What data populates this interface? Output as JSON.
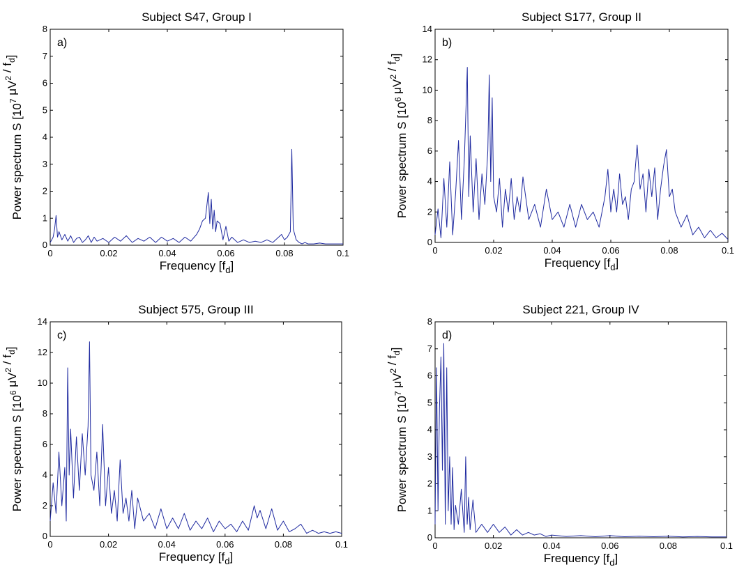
{
  "chart_data": [
    {
      "type": "line",
      "panel_label": "a)",
      "title": "Subject S47, Group I",
      "xlabel": "Frequency [f_d]",
      "ylabel": "Power spectrum S [10^7 μV^2 / f_d]",
      "ylabel_exponent": "7",
      "xlim": [
        0,
        0.1
      ],
      "ylim": [
        0,
        8
      ],
      "xticks": [
        0,
        0.02,
        0.04,
        0.06,
        0.08,
        0.1
      ],
      "xtick_labels": [
        "0",
        "0.02",
        "0.04",
        "0.06",
        "0.08",
        "0.1"
      ],
      "yticks": [
        0,
        1,
        2,
        3,
        4,
        5,
        6,
        7,
        8
      ],
      "ytick_labels": [
        "0",
        "1",
        "2",
        "3",
        "4",
        "5",
        "6",
        "7",
        "8"
      ],
      "color": "#1f2aa0",
      "series": [
        {
          "x": [
            0,
            0.001,
            0.0015,
            0.002,
            0.0025,
            0.003,
            0.004,
            0.005,
            0.006,
            0.007,
            0.008,
            0.009,
            0.01,
            0.011,
            0.012,
            0.013,
            0.014,
            0.015,
            0.016,
            0.018,
            0.02,
            0.022,
            0.024,
            0.026,
            0.028,
            0.03,
            0.032,
            0.034,
            0.036,
            0.038,
            0.04,
            0.042,
            0.044,
            0.046,
            0.048,
            0.05,
            0.051,
            0.052,
            0.053,
            0.054,
            0.0545,
            0.055,
            0.0555,
            0.056,
            0.0565,
            0.057,
            0.058,
            0.059,
            0.06,
            0.061,
            0.062,
            0.064,
            0.066,
            0.068,
            0.07,
            0.072,
            0.074,
            0.076,
            0.078,
            0.079,
            0.08,
            0.081,
            0.082,
            0.0825,
            0.083,
            0.0835,
            0.084,
            0.085,
            0.086,
            0.087,
            0.088,
            0.09,
            0.092,
            0.094,
            0.096,
            0.098,
            0.1
          ],
          "y": [
            0.1,
            0.3,
            0.6,
            1.1,
            0.3,
            0.5,
            0.2,
            0.4,
            0.15,
            0.35,
            0.1,
            0.25,
            0.3,
            0.1,
            0.2,
            0.35,
            0.1,
            0.3,
            0.15,
            0.25,
            0.1,
            0.3,
            0.15,
            0.35,
            0.1,
            0.25,
            0.15,
            0.3,
            0.1,
            0.3,
            0.15,
            0.25,
            0.1,
            0.3,
            0.15,
            0.4,
            0.6,
            0.9,
            1.0,
            1.95,
            0.8,
            1.7,
            0.6,
            1.3,
            0.5,
            0.9,
            0.8,
            0.2,
            0.7,
            0.15,
            0.3,
            0.1,
            0.2,
            0.1,
            0.15,
            0.1,
            0.2,
            0.1,
            0.3,
            0.4,
            0.2,
            0.3,
            0.5,
            3.55,
            0.6,
            0.4,
            0.2,
            0.1,
            0.05,
            0.1,
            0.05,
            0.05,
            0.08,
            0.05,
            0.05,
            0.05,
            0.05
          ]
        }
      ]
    },
    {
      "type": "line",
      "panel_label": "b)",
      "title": "Subject S177, Group II",
      "xlabel": "Frequency [f_d]",
      "ylabel": "Power spectrum S [10^6 μV^2 / f_d]",
      "ylabel_exponent": "6",
      "xlim": [
        0,
        0.1
      ],
      "ylim": [
        0,
        14
      ],
      "xticks": [
        0,
        0.02,
        0.04,
        0.06,
        0.08,
        0.1
      ],
      "xtick_labels": [
        "0",
        "0.02",
        "0.04",
        "0.06",
        "0.08",
        "0.1"
      ],
      "yticks": [
        0,
        2,
        4,
        6,
        8,
        10,
        12,
        14
      ],
      "ytick_labels": [
        "0",
        "2",
        "4",
        "6",
        "8",
        "10",
        "12",
        "14"
      ],
      "color": "#1f2aa0",
      "series": [
        {
          "x": [
            0,
            0.001,
            0.002,
            0.003,
            0.004,
            0.005,
            0.006,
            0.007,
            0.008,
            0.009,
            0.01,
            0.011,
            0.0115,
            0.012,
            0.013,
            0.014,
            0.015,
            0.016,
            0.017,
            0.018,
            0.0185,
            0.019,
            0.0195,
            0.02,
            0.021,
            0.022,
            0.023,
            0.024,
            0.025,
            0.026,
            0.027,
            0.028,
            0.029,
            0.03,
            0.032,
            0.034,
            0.036,
            0.038,
            0.04,
            0.042,
            0.044,
            0.046,
            0.048,
            0.05,
            0.052,
            0.054,
            0.056,
            0.058,
            0.059,
            0.06,
            0.061,
            0.062,
            0.063,
            0.064,
            0.065,
            0.066,
            0.067,
            0.068,
            0.069,
            0.07,
            0.071,
            0.072,
            0.073,
            0.074,
            0.075,
            0.076,
            0.077,
            0.078,
            0.079,
            0.08,
            0.081,
            0.082,
            0.083,
            0.084,
            0.086,
            0.088,
            0.09,
            0.092,
            0.094,
            0.096,
            0.098,
            0.1
          ],
          "y": [
            0.5,
            2.2,
            0.3,
            4.2,
            1.0,
            5.3,
            0.5,
            3.2,
            6.7,
            1.5,
            5.5,
            11.5,
            3.0,
            7.0,
            2.0,
            5.5,
            1.5,
            4.5,
            2.5,
            6.0,
            11.0,
            4.0,
            9.5,
            3.0,
            2.0,
            4.2,
            1.0,
            3.5,
            2.0,
            4.2,
            1.5,
            3.0,
            2.0,
            4.3,
            1.5,
            2.5,
            1.0,
            3.5,
            1.5,
            2.0,
            1.0,
            2.5,
            1.0,
            2.5,
            1.5,
            2.0,
            1.0,
            3.0,
            4.8,
            2.0,
            3.5,
            2.0,
            4.5,
            2.5,
            3.0,
            1.5,
            3.5,
            4.0,
            6.4,
            3.5,
            4.5,
            2.0,
            4.8,
            3.0,
            4.9,
            1.5,
            3.5,
            5.0,
            6.1,
            3.0,
            3.5,
            2.0,
            1.5,
            1.0,
            1.8,
            0.5,
            1.0,
            0.3,
            0.8,
            0.3,
            0.6,
            0.2
          ]
        }
      ]
    },
    {
      "type": "line",
      "panel_label": "c)",
      "title": "Subject 575, Group III",
      "xlabel": "Frequency [f_d]",
      "ylabel": "Power spectrum S [10^6 μV^2 / f_d]",
      "ylabel_exponent": "6",
      "xlim": [
        0,
        0.1
      ],
      "ylim": [
        0,
        14
      ],
      "xticks": [
        0,
        0.02,
        0.04,
        0.06,
        0.08,
        0.1
      ],
      "xtick_labels": [
        "0",
        "0.02",
        "0.04",
        "0.06",
        "0.08",
        "0.1"
      ],
      "yticks": [
        0,
        2,
        4,
        6,
        8,
        10,
        12,
        14
      ],
      "ytick_labels": [
        "0",
        "2",
        "4",
        "6",
        "8",
        "10",
        "12",
        "14"
      ],
      "color": "#1f2aa0",
      "series": [
        {
          "x": [
            0,
            0.001,
            0.002,
            0.003,
            0.004,
            0.005,
            0.0055,
            0.006,
            0.0065,
            0.007,
            0.008,
            0.009,
            0.01,
            0.011,
            0.012,
            0.013,
            0.0135,
            0.014,
            0.015,
            0.016,
            0.017,
            0.018,
            0.019,
            0.02,
            0.021,
            0.022,
            0.023,
            0.024,
            0.025,
            0.026,
            0.027,
            0.028,
            0.029,
            0.03,
            0.032,
            0.034,
            0.036,
            0.038,
            0.04,
            0.042,
            0.044,
            0.046,
            0.048,
            0.05,
            0.052,
            0.054,
            0.056,
            0.058,
            0.06,
            0.062,
            0.064,
            0.066,
            0.068,
            0.07,
            0.071,
            0.072,
            0.074,
            0.076,
            0.078,
            0.08,
            0.082,
            0.084,
            0.086,
            0.088,
            0.09,
            0.092,
            0.094,
            0.096,
            0.098,
            0.1
          ],
          "y": [
            1.0,
            3.5,
            1.5,
            5.5,
            2.0,
            4.5,
            1.0,
            11.0,
            4.0,
            7.0,
            2.5,
            6.5,
            3.0,
            6.7,
            4.0,
            7.2,
            12.7,
            4.0,
            3.0,
            5.5,
            2.0,
            7.3,
            2.0,
            4.5,
            1.5,
            3.0,
            1.0,
            5.0,
            1.5,
            2.5,
            1.0,
            3.0,
            0.5,
            2.5,
            1.0,
            1.5,
            0.5,
            1.8,
            0.5,
            1.2,
            0.5,
            1.5,
            0.4,
            1.0,
            0.5,
            1.2,
            0.3,
            1.0,
            0.5,
            0.8,
            0.3,
            1.0,
            0.4,
            2.0,
            1.2,
            1.7,
            0.5,
            1.8,
            0.4,
            1.0,
            0.3,
            0.5,
            0.8,
            0.2,
            0.4,
            0.2,
            0.3,
            0.2,
            0.3,
            0.2
          ]
        }
      ]
    },
    {
      "type": "line",
      "panel_label": "d)",
      "title": "Subject 221, Group IV",
      "xlabel": "Frequency [f_d]",
      "ylabel": "Power spectrum S [10^7 μV^2 / f_d]",
      "ylabel_exponent": "7",
      "xlim": [
        0,
        0.1
      ],
      "ylim": [
        0,
        8
      ],
      "xticks": [
        0,
        0.02,
        0.04,
        0.06,
        0.08,
        0.1
      ],
      "xtick_labels": [
        "0",
        "0.02",
        "0.04",
        "0.06",
        "0.08",
        "0.1"
      ],
      "yticks": [
        0,
        1,
        2,
        3,
        4,
        5,
        6,
        7,
        8
      ],
      "ytick_labels": [
        "0",
        "1",
        "2",
        "3",
        "4",
        "5",
        "6",
        "7",
        "8"
      ],
      "color": "#1f2aa0",
      "series": [
        {
          "x": [
            0,
            0.0005,
            0.001,
            0.0015,
            0.002,
            0.0025,
            0.003,
            0.0035,
            0.004,
            0.0045,
            0.005,
            0.0055,
            0.006,
            0.0065,
            0.007,
            0.008,
            0.009,
            0.01,
            0.0105,
            0.011,
            0.0115,
            0.012,
            0.013,
            0.014,
            0.016,
            0.018,
            0.02,
            0.022,
            0.024,
            0.026,
            0.028,
            0.03,
            0.032,
            0.034,
            0.036,
            0.038,
            0.04,
            0.045,
            0.05,
            0.055,
            0.06,
            0.065,
            0.07,
            0.075,
            0.08,
            0.085,
            0.09,
            0.095,
            0.1
          ],
          "y": [
            0.5,
            6.3,
            1.0,
            4.8,
            6.7,
            2.5,
            7.2,
            0.5,
            6.3,
            1.0,
            3.0,
            0.5,
            2.6,
            0.3,
            1.2,
            0.5,
            1.8,
            0.2,
            3.0,
            0.5,
            1.5,
            0.3,
            1.4,
            0.2,
            0.5,
            0.2,
            0.5,
            0.2,
            0.4,
            0.1,
            0.3,
            0.1,
            0.2,
            0.1,
            0.15,
            0.05,
            0.1,
            0.05,
            0.08,
            0.04,
            0.08,
            0.04,
            0.06,
            0.04,
            0.06,
            0.03,
            0.05,
            0.03,
            0.03
          ]
        }
      ]
    }
  ]
}
